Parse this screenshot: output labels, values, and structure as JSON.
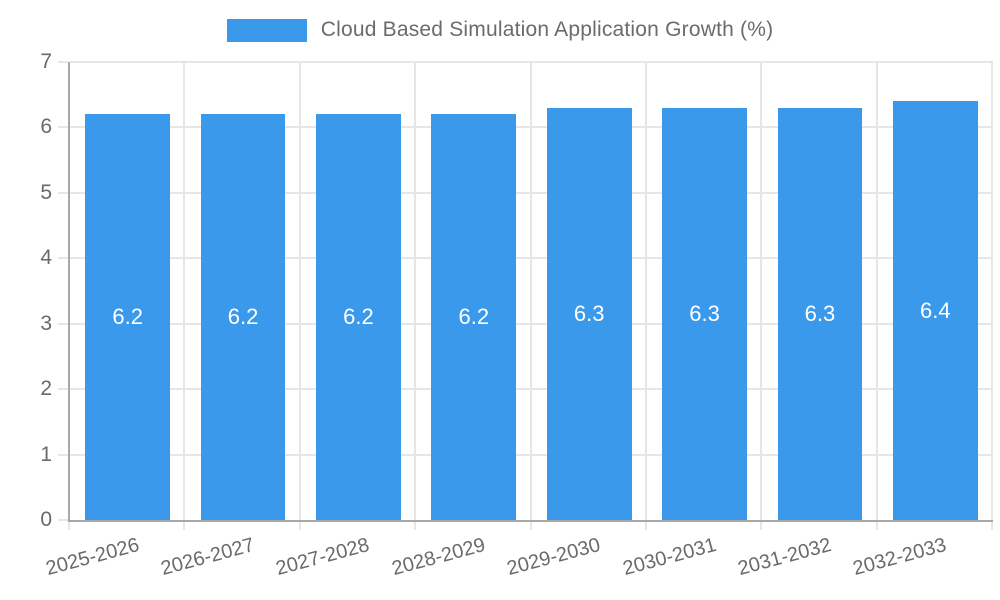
{
  "chart_data": {
    "type": "bar",
    "title": "Cloud Based Simulation Application Growth (%)",
    "categories": [
      "2025-2026",
      "2026-2027",
      "2027-2028",
      "2028-2029",
      "2029-2030",
      "2030-2031",
      "2031-2032",
      "2032-2033"
    ],
    "values": [
      6.2,
      6.2,
      6.2,
      6.2,
      6.3,
      6.3,
      6.3,
      6.4
    ],
    "value_labels": [
      "6.2",
      "6.2",
      "6.2",
      "6.2",
      "6.3",
      "6.3",
      "6.3",
      "6.4"
    ],
    "xlabel": "",
    "ylabel": "",
    "ylim": [
      0,
      7
    ],
    "yticks": [
      0,
      1,
      2,
      3,
      4,
      5,
      6,
      7
    ],
    "grid": true,
    "legend_position": "top",
    "x_label_rotation_deg": -15,
    "colors": {
      "bar": "#3B99EC",
      "grid": "#E6E6E6",
      "axis": "#A8A8A8",
      "tick_text": "#6A6A6A",
      "title_text": "#6B6B6B",
      "bar_label": "#FFFFFF"
    }
  }
}
